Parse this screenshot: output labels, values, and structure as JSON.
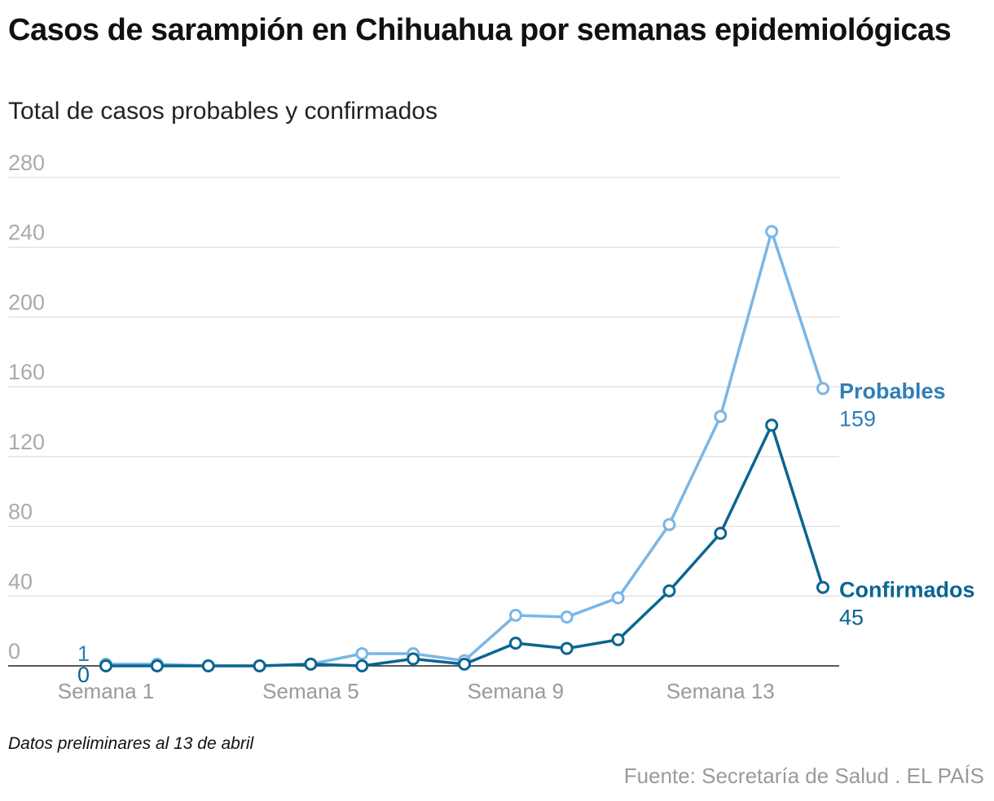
{
  "chart_data": {
    "type": "line",
    "title": "Casos de sarampión en Chihuahua por semanas epidemiológicas",
    "subtitle": "Total de casos probables y confirmados",
    "x": [
      1,
      2,
      3,
      4,
      5,
      6,
      7,
      8,
      9,
      10,
      11,
      12,
      13,
      14,
      15
    ],
    "xtick_values": [
      1,
      5,
      9,
      13
    ],
    "xtick_labels": [
      "Semana 1",
      "Semana 5",
      "Semana 9",
      "Semana 13"
    ],
    "ylim": [
      0,
      280
    ],
    "yticks": [
      0,
      40,
      80,
      120,
      160,
      200,
      240,
      280
    ],
    "grid": true,
    "series": [
      {
        "name": "Probables",
        "color": "#7ab6e6",
        "label_color": "#2f7fb8",
        "values": [
          1,
          1,
          0,
          0,
          1,
          7,
          7,
          3,
          29,
          28,
          39,
          81,
          143,
          249,
          159
        ],
        "end_value_label": "159",
        "start_value_label": "1"
      },
      {
        "name": "Confirmados",
        "color": "#0b6591",
        "label_color": "#0b6591",
        "values": [
          0,
          0,
          0,
          0,
          1,
          0,
          4,
          1,
          13,
          10,
          15,
          43,
          76,
          138,
          45
        ],
        "end_value_label": "45",
        "start_value_label": "0"
      }
    ],
    "note": "Datos preliminares al 13 de abril",
    "source": "Fuente: Secretaría de Salud . EL PAÍS"
  }
}
